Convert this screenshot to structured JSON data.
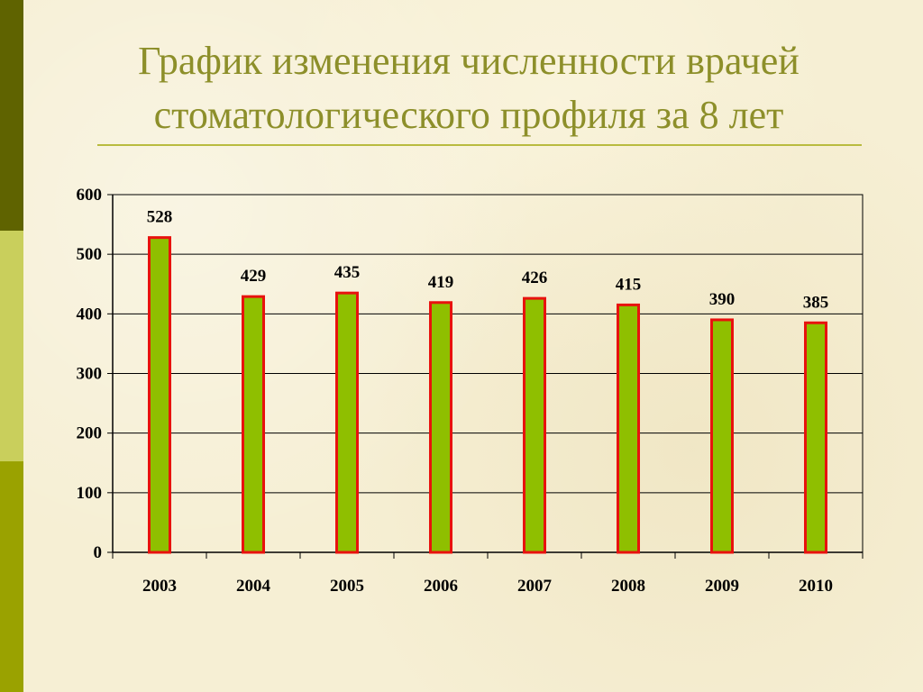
{
  "slide": {
    "title_line1": "График изменения численности врачей",
    "title_line2": "стоматологического профиля за 8 лет"
  },
  "colors": {
    "bar_fill": "#8fbf00",
    "bar_stroke": "#e8120e",
    "title": "#8d8f2a"
  },
  "chart_data": {
    "type": "bar",
    "categories": [
      "2003",
      "2004",
      "2005",
      "2006",
      "2007",
      "2008",
      "2009",
      "2010"
    ],
    "values": [
      528,
      429,
      435,
      419,
      426,
      415,
      390,
      385
    ],
    "data_labels": [
      "528",
      "429",
      "435",
      "419",
      "426",
      "415",
      "390",
      "385"
    ],
    "yticks": [
      "0",
      "100",
      "200",
      "300",
      "400",
      "500",
      "600"
    ],
    "ylim": [
      0,
      600
    ],
    "ytick_step": 100,
    "grid": true,
    "legend": "none"
  }
}
